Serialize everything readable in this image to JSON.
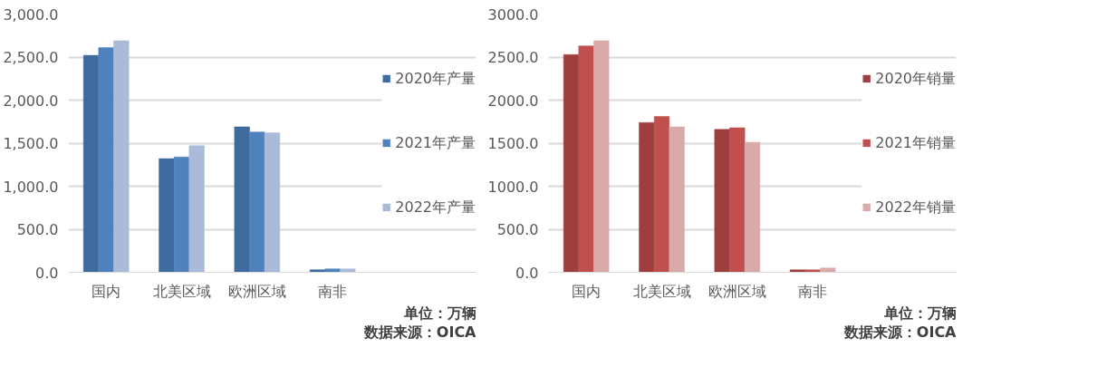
{
  "chart_data": [
    {
      "type": "bar",
      "categories": [
        "国内",
        "北美区域",
        "欧洲区域",
        "南非"
      ],
      "series": [
        {
          "name": "2020年产量",
          "color": "#3f6a9e",
          "values": [
            2520,
            1320,
            1690,
            30
          ]
        },
        {
          "name": "2021年产量",
          "color": "#4f81bd",
          "values": [
            2610,
            1340,
            1630,
            40
          ]
        },
        {
          "name": "2022年产量",
          "color": "#a9bbd9",
          "values": [
            2690,
            1470,
            1620,
            40
          ]
        }
      ],
      "ylim": [
        0,
        3000
      ],
      "yticks": [
        {
          "value": 0,
          "label": "0.0"
        },
        {
          "value": 500,
          "label": "500.0"
        },
        {
          "value": 1000,
          "label": "1,000.0"
        },
        {
          "value": 1500,
          "label": "1,500.0"
        },
        {
          "value": 2000,
          "label": "2,000.0"
        },
        {
          "value": 2500,
          "label": "2,500.0"
        },
        {
          "value": 3000,
          "label": "3,000.0"
        }
      ],
      "grid": "y",
      "legend": "right",
      "annotations": [
        "数据来源：OICA",
        "单位：万辆"
      ]
    },
    {
      "type": "bar",
      "categories": [
        "国内",
        "北美区域",
        "欧洲区域",
        "南非"
      ],
      "series": [
        {
          "name": "2020年销量",
          "color": "#9e3f3e",
          "values": [
            2530,
            1740,
            1660,
            30
          ]
        },
        {
          "name": "2021年销量",
          "color": "#c0504d",
          "values": [
            2630,
            1810,
            1680,
            30
          ]
        },
        {
          "name": "2022年销量",
          "color": "#d9aaaa",
          "values": [
            2690,
            1690,
            1510,
            50
          ]
        }
      ],
      "ylim": [
        0,
        3000
      ],
      "yticks": [
        {
          "value": 0,
          "label": "0.0"
        },
        {
          "value": 500,
          "label": "500.0"
        },
        {
          "value": 1000,
          "label": "1000.0"
        },
        {
          "value": 1500,
          "label": "1500.0"
        },
        {
          "value": 2000,
          "label": "2000.0"
        },
        {
          "value": 2500,
          "label": "2500.0"
        },
        {
          "value": 3000,
          "label": "3000.0"
        }
      ],
      "grid": "y",
      "legend": "right",
      "annotations": [
        "数据来源：OICA",
        "单位：万辆"
      ]
    }
  ]
}
